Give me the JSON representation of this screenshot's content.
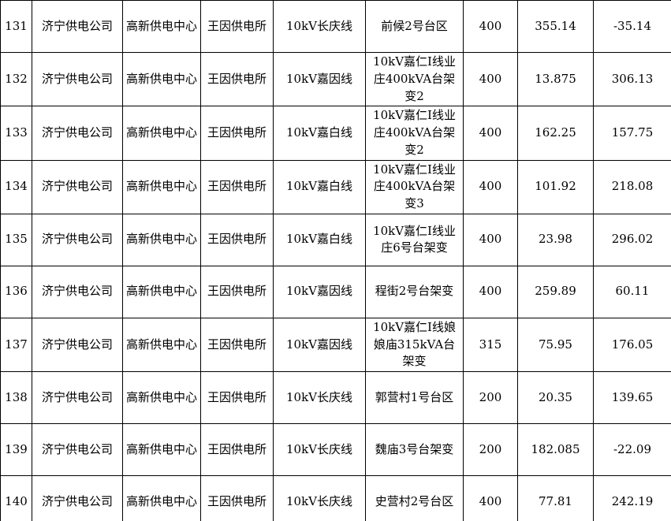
{
  "page": {
    "background_color": "#ffffff",
    "grid_border_color": "#000000",
    "text_color": "#000000"
  },
  "table": {
    "column_names": [
      "row-number",
      "company-name",
      "supply-center-name",
      "supply-station-name",
      "line-name",
      "station-area-name",
      "capacity-kva",
      "load-value",
      "margin-value"
    ],
    "rows": [
      [
        "131",
        "济宁供电公司",
        "高新供电中心",
        "王因供电所",
        "10kV长庆线",
        "前候2号台区",
        "400",
        "355.14",
        "-35.14"
      ],
      [
        "132",
        "济宁供电公司",
        "高新供电中心",
        "王因供电所",
        "10kV嘉因线",
        "10kV嘉仁Ⅰ线业庄400kVA台架变2",
        "400",
        "13.875",
        "306.13"
      ],
      [
        "133",
        "济宁供电公司",
        "高新供电中心",
        "王因供电所",
        "10kV嘉白线",
        "10kV嘉仁Ⅰ线业庄400kVA台架变2",
        "400",
        "162.25",
        "157.75"
      ],
      [
        "134",
        "济宁供电公司",
        "高新供电中心",
        "王因供电所",
        "10kV嘉白线",
        "10kV嘉仁Ⅰ线业庄400kVA台架变3",
        "400",
        "101.92",
        "218.08"
      ],
      [
        "135",
        "济宁供电公司",
        "高新供电中心",
        "王因供电所",
        "10kV嘉白线",
        "10kV嘉仁Ⅰ线业庄6号台架变",
        "400",
        "23.98",
        "296.02"
      ],
      [
        "136",
        "济宁供电公司",
        "高新供电中心",
        "王因供电所",
        "10kV嘉因线",
        "程街2号台架变",
        "400",
        "259.89",
        "60.11"
      ],
      [
        "137",
        "济宁供电公司",
        "高新供电中心",
        "王因供电所",
        "10kV嘉因线",
        "10kV嘉仁Ⅰ线娘娘庙315kVA台架变",
        "315",
        "75.95",
        "176.05"
      ],
      [
        "138",
        "济宁供电公司",
        "高新供电中心",
        "王因供电所",
        "10kV长庆线",
        "郭营村1号台区",
        "200",
        "20.35",
        "139.65"
      ],
      [
        "139",
        "济宁供电公司",
        "高新供电中心",
        "王因供电所",
        "10kV长庆线",
        "魏庙3号台架变",
        "200",
        "182.085",
        "-22.09"
      ],
      [
        "140",
        "济宁供电公司",
        "高新供电中心",
        "王因供电所",
        "10kV长庆线",
        "史营村2号台区",
        "400",
        "77.81",
        "242.19"
      ]
    ]
  }
}
